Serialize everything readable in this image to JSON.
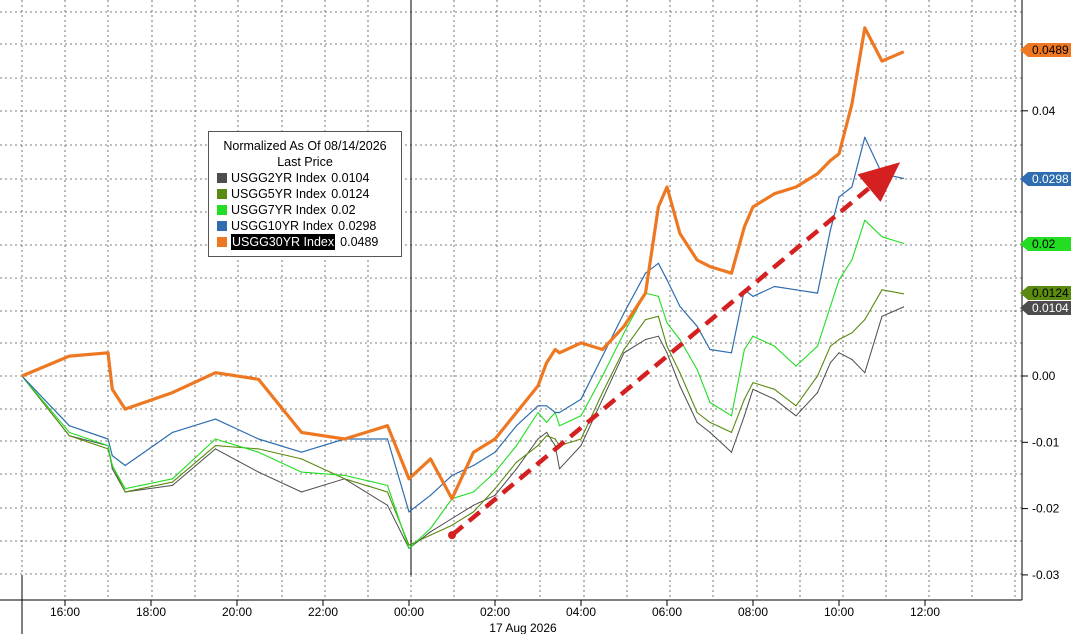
{
  "chart_data": {
    "type": "line",
    "title": "Normalized As Of 08/14/2026",
    "subtitle": "Last Price",
    "x_tick_labels": [
      "16:00",
      "18:00",
      "20:00",
      "22:00",
      "00:00",
      "02:00",
      "04:00",
      "06:00",
      "08:00",
      "10:00",
      "12:00"
    ],
    "x_date_label": "17 Aug 2026",
    "y_tick_labels": [
      "0.04",
      "0.00",
      "-0.01",
      "-0.02",
      "-0.03"
    ],
    "ylim": [
      -0.031,
      0.056
    ],
    "grid": true,
    "legend_position": "top-left",
    "time_hours": [
      15.0,
      16.1,
      17.0,
      17.1,
      17.4,
      18.5,
      19.5,
      20.5,
      21.5,
      22.5,
      23.5,
      24.0,
      24.5,
      25.0,
      25.5,
      26.0,
      26.5,
      27.0,
      27.2,
      27.4,
      27.5,
      28.0,
      28.5,
      29.0,
      29.5,
      29.8,
      30.0,
      30.3,
      30.7,
      31.0,
      31.5,
      31.8,
      32.0,
      32.5,
      33.0,
      33.5,
      33.8,
      34.0,
      34.3,
      34.6,
      35.0,
      35.5
    ],
    "series": [
      {
        "name": "USGG2YR Index",
        "color": "#4d4d4d",
        "last": "0.0104",
        "values": [
          0.0,
          -0.009,
          -0.0105,
          -0.014,
          -0.0175,
          -0.0165,
          -0.011,
          -0.0145,
          -0.0175,
          -0.0155,
          -0.0195,
          -0.026,
          -0.0235,
          -0.0215,
          -0.0195,
          -0.018,
          -0.014,
          -0.0095,
          -0.0085,
          -0.0105,
          -0.014,
          -0.0105,
          -0.0035,
          0.0035,
          0.0055,
          0.006,
          0.0035,
          -0.0015,
          -0.007,
          -0.0085,
          -0.0115,
          -0.006,
          -0.002,
          -0.0035,
          -0.006,
          -0.0025,
          0.002,
          0.0035,
          0.0025,
          0.0005,
          0.009,
          0.0104
        ]
      },
      {
        "name": "USGG5YR Index",
        "color": "#5a8a10",
        "last": "0.0124",
        "values": [
          0.0,
          -0.009,
          -0.011,
          -0.0135,
          -0.0175,
          -0.016,
          -0.0105,
          -0.011,
          -0.0125,
          -0.0155,
          -0.0175,
          -0.0255,
          -0.024,
          -0.0225,
          -0.0205,
          -0.017,
          -0.013,
          -0.0105,
          -0.009,
          -0.0095,
          -0.0105,
          -0.0095,
          -0.0025,
          0.004,
          0.0085,
          0.009,
          0.0045,
          0.0005,
          -0.0055,
          -0.007,
          -0.0085,
          -0.0035,
          -0.001,
          -0.002,
          -0.0045,
          0.0,
          0.0045,
          0.0055,
          0.0065,
          0.0085,
          0.013,
          0.0124
        ]
      },
      {
        "name": "USGG7YR Index",
        "color": "#22dd22",
        "last": "0.02",
        "values": [
          0.0,
          -0.0085,
          -0.0105,
          -0.0135,
          -0.017,
          -0.0155,
          -0.0095,
          -0.0115,
          -0.0145,
          -0.015,
          -0.0165,
          -0.026,
          -0.023,
          -0.0185,
          -0.0175,
          -0.0145,
          -0.0105,
          -0.0055,
          -0.007,
          -0.0055,
          -0.0075,
          -0.006,
          0.0,
          0.0065,
          0.0125,
          0.012,
          0.008,
          0.0055,
          0.001,
          -0.004,
          -0.006,
          0.004,
          0.006,
          0.0045,
          0.0015,
          0.0045,
          0.0105,
          0.0145,
          0.0175,
          0.0235,
          0.021,
          0.02
        ]
      },
      {
        "name": "USGG10YR Index",
        "color": "#2e6db0",
        "last": "0.0298",
        "values": [
          0.0,
          -0.0075,
          -0.0095,
          -0.012,
          -0.0135,
          -0.0085,
          -0.0065,
          -0.0095,
          -0.0115,
          -0.0095,
          -0.0095,
          -0.0205,
          -0.018,
          -0.015,
          -0.0135,
          -0.0115,
          -0.0075,
          -0.0045,
          -0.0045,
          -0.0055,
          -0.0055,
          -0.0035,
          0.003,
          0.0095,
          0.0155,
          0.017,
          0.0145,
          0.0105,
          0.0075,
          0.004,
          0.0035,
          0.013,
          0.012,
          0.0135,
          0.013,
          0.0125,
          0.022,
          0.027,
          0.0285,
          0.036,
          0.0305,
          0.0298
        ]
      },
      {
        "name": "USGG30YR Index",
        "color": "#ee7722",
        "last": "0.0489",
        "values": [
          0.0,
          0.003,
          0.0035,
          -0.002,
          -0.005,
          -0.0025,
          0.0005,
          -0.0005,
          -0.0085,
          -0.0095,
          -0.0075,
          -0.0155,
          -0.0125,
          -0.0185,
          -0.0115,
          -0.0095,
          -0.0055,
          -0.0015,
          0.002,
          0.004,
          0.0035,
          0.005,
          0.004,
          0.0075,
          0.0125,
          0.0255,
          0.0285,
          0.0215,
          0.0175,
          0.0165,
          0.0155,
          0.0225,
          0.0255,
          0.0275,
          0.0285,
          0.0305,
          0.0325,
          0.0335,
          0.041,
          0.0525,
          0.0475,
          0.0489
        ]
      }
    ],
    "trend_arrow": {
      "color": "#d42020",
      "from": [
        25.0,
        -0.024
      ],
      "to": [
        35.1,
        0.0305
      ]
    }
  }
}
